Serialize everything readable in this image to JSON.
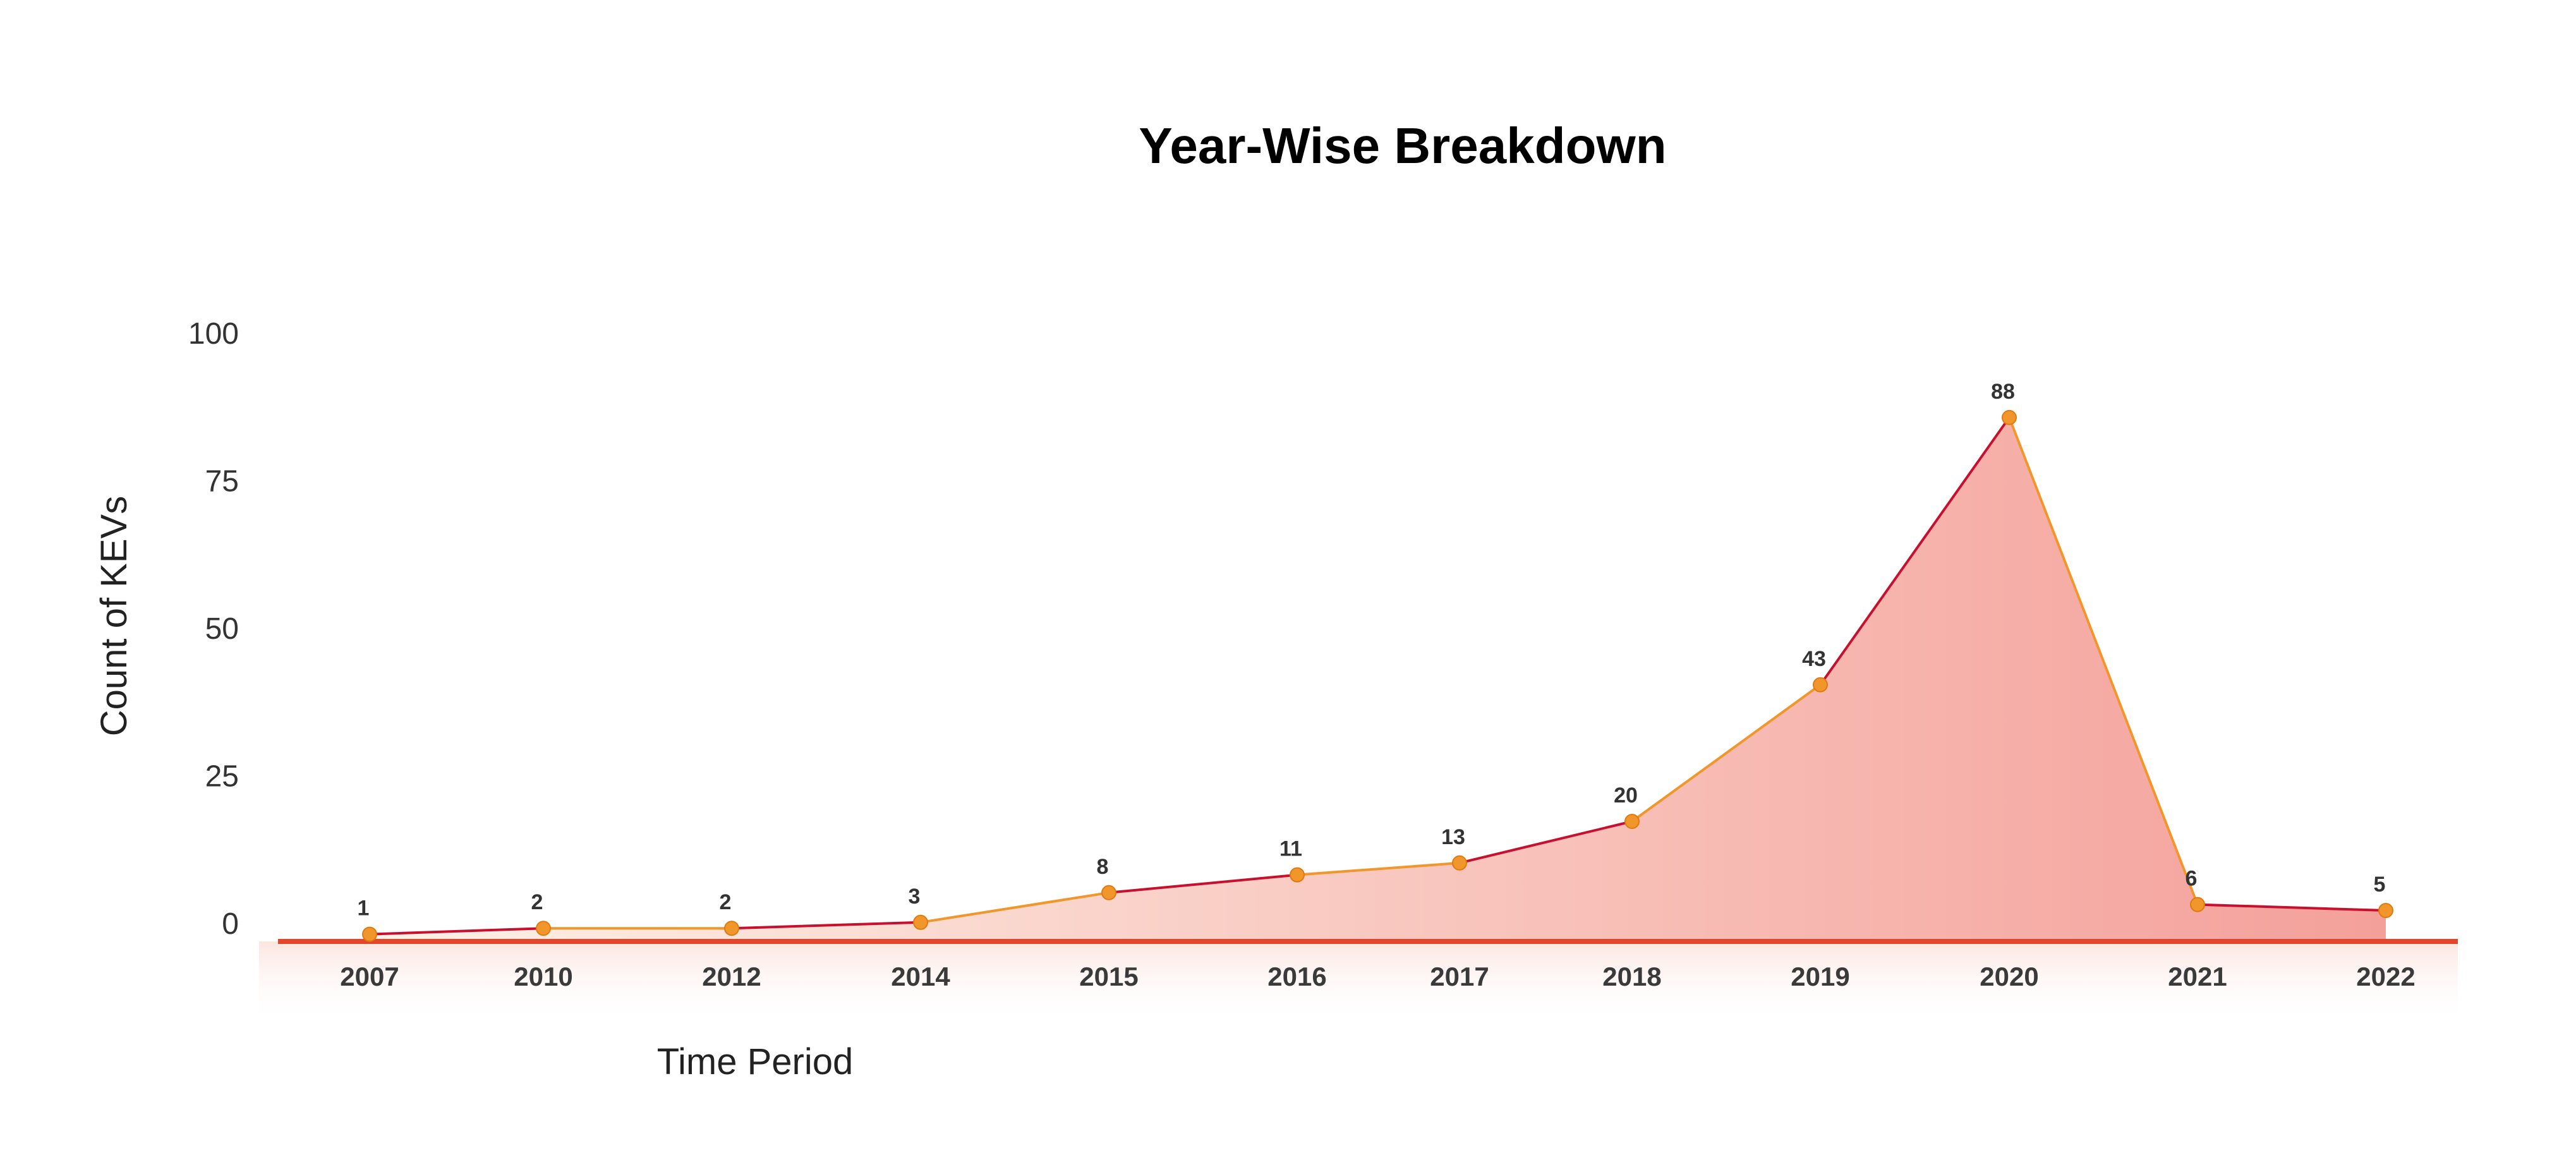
{
  "chart_data": {
    "type": "area",
    "title": "Year-Wise Breakdown",
    "xlabel": "Time Period",
    "ylabel": "Count of KEVs",
    "categories": [
      "2007",
      "2010",
      "2012",
      "2014",
      "2015",
      "2016",
      "2017",
      "2018",
      "2019",
      "2020",
      "2021",
      "2022"
    ],
    "series": [
      {
        "values": [
          1,
          2,
          2,
          3,
          8,
          11,
          13,
          20,
          43,
          88,
          6,
          5
        ]
      }
    ],
    "data_labels": [
      "1",
      "2",
      "2",
      "3",
      "8",
      "11",
      "13",
      "20",
      "43",
      "88",
      "6",
      "5"
    ],
    "yticks": [
      "0",
      "25",
      "50",
      "75",
      "100"
    ],
    "ylim": [
      0,
      100
    ],
    "grid": true,
    "legend": "none",
    "colors": {
      "line": "#c8102e",
      "marker": "#f0962a",
      "fill_light": "#fdf1e6",
      "fill_dark": "#f4a09a",
      "grid": "#f6c8bd",
      "baseline": "#e0472a"
    }
  }
}
